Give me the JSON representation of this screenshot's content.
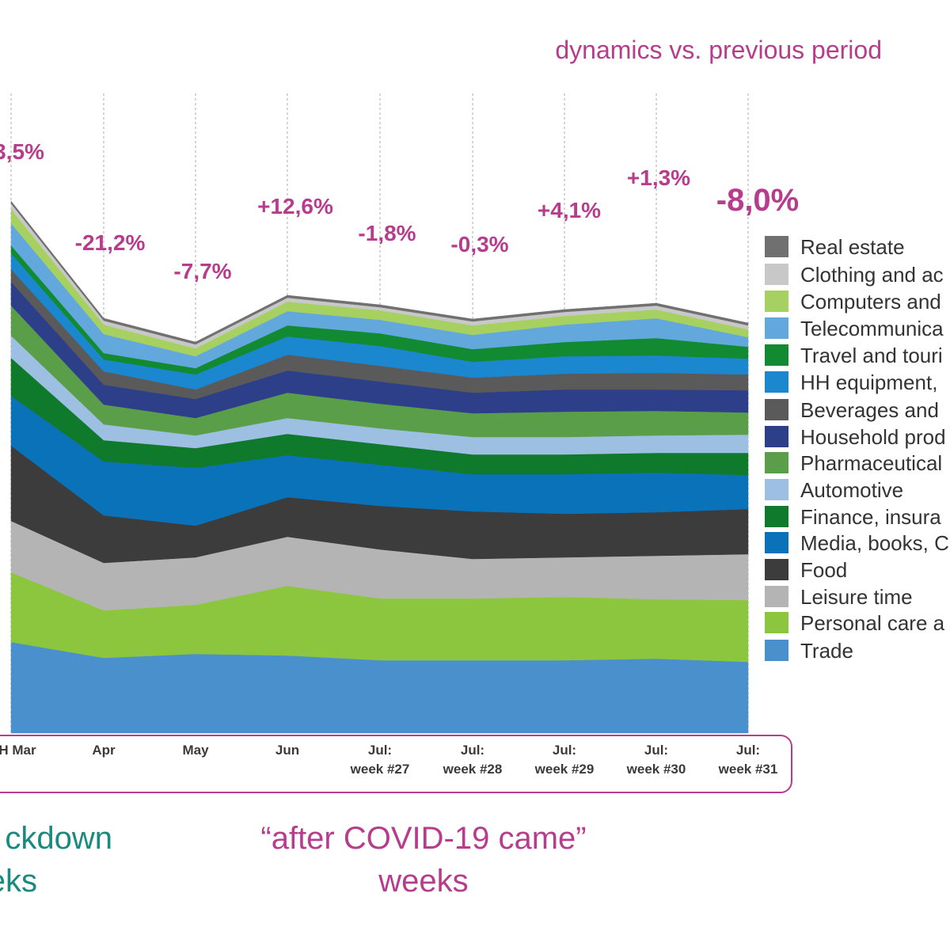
{
  "subtitle": "dynamics vs. previous period",
  "chart_data": {
    "type": "area",
    "stacked": true,
    "x_labels": [
      [
        "H Mar"
      ],
      [
        "Apr"
      ],
      [
        "May"
      ],
      [
        "Jun"
      ],
      [
        "Jul:",
        "week #27"
      ],
      [
        "Jul:",
        "week #28"
      ],
      [
        "Jul:",
        "week #29"
      ],
      [
        "Jul:",
        "week #30"
      ],
      [
        "Jul:",
        "week #31"
      ]
    ],
    "annotations": [
      "3,5%",
      "-21,2%",
      "-7,7%",
      "+12,6%",
      "-1,8%",
      "-0,3%",
      "+4,1%",
      "+1,3%",
      "-8,0%"
    ],
    "legend_position": "right",
    "grid": "vertical dashed",
    "series": [
      {
        "name": "Trade",
        "color": "#4a90cc",
        "values": [
          115,
          95,
          100,
          98,
          92,
          92,
          92,
          94,
          90
        ]
      },
      {
        "name": "Personal care a",
        "color": "#8cc63f",
        "values": [
          88,
          60,
          62,
          88,
          78,
          78,
          80,
          75,
          78
        ]
      },
      {
        "name": "Leisure time",
        "color": "#b4b4b4",
        "values": [
          65,
          60,
          60,
          62,
          62,
          50,
          50,
          55,
          58
        ]
      },
      {
        "name": "Food",
        "color": "#3c3c3c",
        "values": [
          95,
          60,
          40,
          50,
          55,
          60,
          55,
          55,
          57
        ]
      },
      {
        "name": "Media, books, C",
        "color": "#0a72b8",
        "values": [
          63,
          68,
          73,
          53,
          52,
          47,
          50,
          50,
          43
        ]
      },
      {
        "name": "Finance, insura",
        "color": "#0f7a2c",
        "values": [
          48,
          27,
          25,
          27,
          26,
          25,
          25,
          25,
          28
        ]
      },
      {
        "name": "Automotive",
        "color": "#9cbfe2",
        "values": [
          28,
          20,
          16,
          20,
          20,
          22,
          22,
          22,
          23
        ]
      },
      {
        "name": "Pharmaceutical",
        "color": "#5a9e4a",
        "values": [
          38,
          25,
          22,
          32,
          31,
          30,
          32,
          31,
          28
        ]
      },
      {
        "name": "Household prod",
        "color": "#2e3f8a",
        "values": [
          30,
          25,
          24,
          28,
          28,
          26,
          28,
          27,
          28
        ]
      },
      {
        "name": "Beverages and",
        "color": "#5a5a5a",
        "values": [
          16,
          17,
          12,
          20,
          20,
          19,
          20,
          21,
          20
        ]
      },
      {
        "name": "HH equipment,",
        "color": "#1a87cf",
        "values": [
          20,
          15,
          19,
          23,
          25,
          20,
          22,
          22,
          20
        ]
      },
      {
        "name": "Travel and touri",
        "color": "#128a32",
        "values": [
          10,
          8,
          8,
          14,
          16,
          16,
          18,
          22,
          15
        ]
      },
      {
        "name": "Telecommunica",
        "color": "#62a8dc",
        "values": [
          28,
          24,
          15,
          18,
          17,
          18,
          22,
          25,
          12
        ]
      },
      {
        "name": "Computers and",
        "color": "#a6d160",
        "values": [
          18,
          12,
          10,
          12,
          12,
          12,
          11,
          11,
          10
        ]
      },
      {
        "name": "Clothing and ac",
        "color": "#c8c8c8",
        "values": [
          7,
          5,
          5,
          5,
          4,
          5,
          5,
          5,
          5
        ]
      },
      {
        "name": "Real estate",
        "color": "#707070",
        "values": [
          3,
          3,
          3,
          3,
          3,
          3,
          3,
          3,
          3
        ]
      }
    ]
  },
  "group_labels": {
    "left": [
      "ckdown",
      "eks"
    ],
    "right": [
      "“after COVID-19 came”",
      "weeks"
    ]
  }
}
